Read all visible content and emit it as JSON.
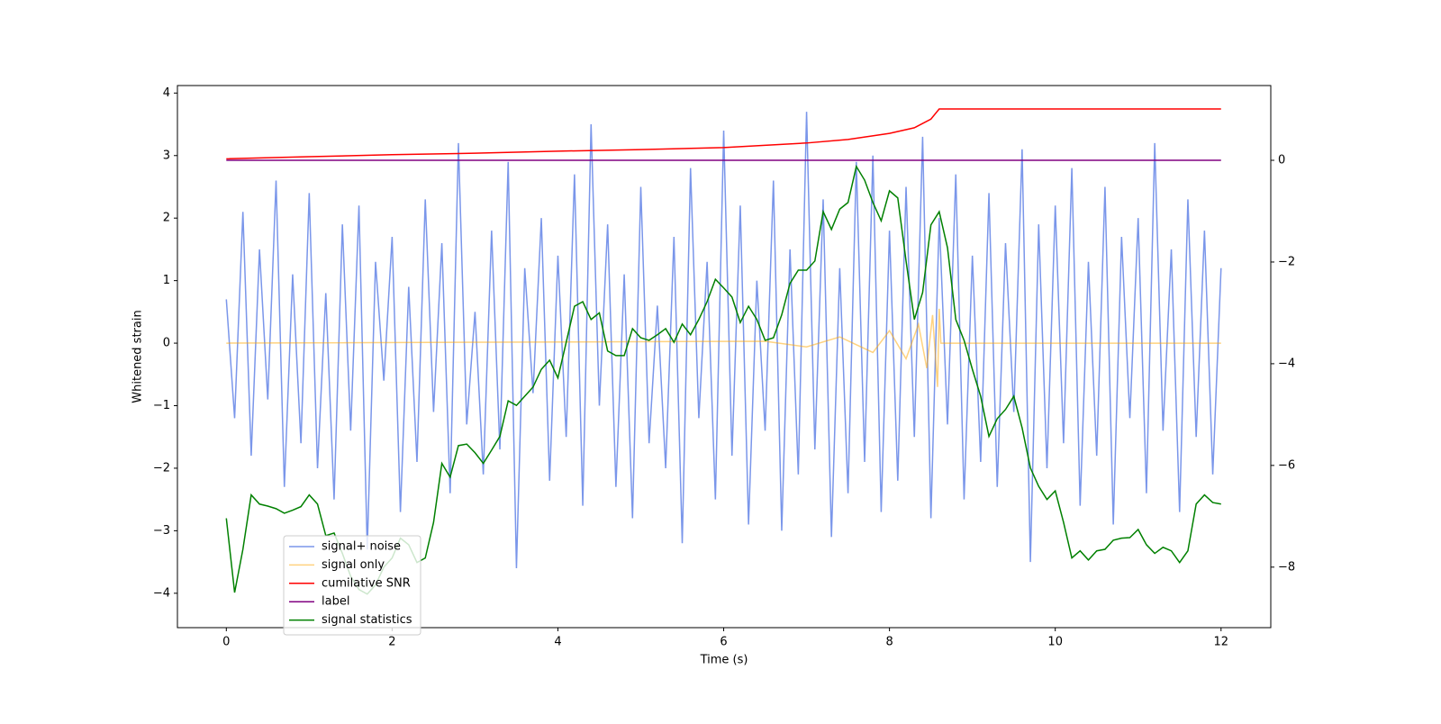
{
  "chart_data": {
    "type": "line",
    "xlabel": "Time (s)",
    "ylabel": "Whitened strain",
    "xlim": [
      -0.59,
      12.6
    ],
    "xticks": [
      0,
      2,
      4,
      6,
      8,
      10,
      12
    ],
    "ylim": [
      -4.55,
      4.12
    ],
    "yticks": [
      {
        "value": -4,
        "label": "−4"
      },
      {
        "value": -3,
        "label": "−3"
      },
      {
        "value": -2,
        "label": "−2"
      },
      {
        "value": -1,
        "label": "−1"
      },
      0,
      1,
      2,
      3,
      4
    ],
    "y2lim": [
      -9.19,
      1.47
    ],
    "y2ticks": [
      {
        "value": -8,
        "label": "−8"
      },
      {
        "value": -6,
        "label": "−6"
      },
      {
        "value": -4,
        "label": "−4"
      },
      {
        "value": -2,
        "label": "−2"
      },
      0
    ],
    "grid": false,
    "legend": "lower left",
    "x": [
      0,
      0.1,
      0.2,
      0.3,
      0.4,
      0.5,
      0.6,
      0.7,
      0.8,
      0.9,
      1,
      1.1,
      1.2,
      1.3,
      1.4,
      1.5,
      1.6,
      1.7,
      1.8,
      1.9,
      2,
      2.1,
      2.2,
      2.3,
      2.4,
      2.5,
      2.6,
      2.7,
      2.8,
      2.9,
      3,
      3.1,
      3.2,
      3.3,
      3.4,
      3.5,
      3.6,
      3.7,
      3.8,
      3.9,
      4,
      4.1,
      4.2,
      4.3,
      4.4,
      4.5,
      4.6,
      4.7,
      4.8,
      4.9,
      5,
      5.1,
      5.2,
      5.3,
      5.4,
      5.5,
      5.6,
      5.7,
      5.8,
      5.9,
      6,
      6.1,
      6.2,
      6.3,
      6.4,
      6.5,
      6.6,
      6.7,
      6.8,
      6.9,
      7,
      7.1,
      7.2,
      7.3,
      7.4,
      7.5,
      7.6,
      7.7,
      7.8,
      7.9,
      8,
      8.1,
      8.2,
      8.3,
      8.4,
      8.5,
      8.6,
      8.7,
      8.8,
      8.9,
      9,
      9.1,
      9.2,
      9.3,
      9.4,
      9.5,
      9.6,
      9.7,
      9.8,
      9.9,
      10,
      10.1,
      10.2,
      10.3,
      10.4,
      10.5,
      10.6,
      10.7,
      10.8,
      10.9,
      11,
      11.1,
      11.2,
      11.3,
      11.4,
      11.5,
      11.6,
      11.7,
      11.8,
      11.9,
      12
    ],
    "series": [
      {
        "name": "signal+ noise",
        "color": "#4169e1",
        "alpha": 0.7,
        "values": [
          0.7,
          -1.2,
          2.1,
          -1.8,
          1.5,
          -0.9,
          2.6,
          -2.3,
          1.1,
          -1.6,
          2.4,
          -2.0,
          0.8,
          -2.5,
          1.9,
          -1.4,
          2.2,
          -3.3,
          1.3,
          -0.6,
          1.7,
          -2.7,
          0.9,
          -1.9,
          2.3,
          -1.1,
          1.6,
          -2.4,
          3.2,
          -1.3,
          0.5,
          -2.1,
          1.8,
          -1.7,
          2.9,
          -3.6,
          1.2,
          -0.8,
          2.0,
          -2.2,
          1.4,
          -1.5,
          2.7,
          -2.6,
          3.5,
          -1.0,
          1.9,
          -2.3,
          1.1,
          -2.8,
          2.5,
          -1.6,
          0.6,
          -2.0,
          1.7,
          -3.2,
          2.8,
          -1.2,
          1.3,
          -2.5,
          3.4,
          -1.8,
          2.2,
          -2.9,
          1.0,
          -1.4,
          2.6,
          -3.0,
          1.5,
          -2.1,
          3.7,
          -1.7,
          2.3,
          -3.1,
          1.2,
          -2.4,
          2.9,
          -1.9,
          3.0,
          -2.7,
          1.8,
          -2.2,
          2.5,
          -1.5,
          3.3,
          -2.8,
          2.0,
          -1.3,
          2.7,
          -2.5,
          1.4,
          -1.9,
          2.4,
          -2.3,
          1.6,
          -1.1,
          3.1,
          -3.5,
          1.9,
          -2.0,
          2.2,
          -1.6,
          2.8,
          -2.6,
          1.3,
          -1.8,
          2.5,
          -2.9,
          1.7,
          -1.2,
          2.0,
          -2.4,
          3.2,
          -1.4,
          1.5,
          -2.7,
          2.3,
          -1.5,
          1.8,
          -2.1,
          1.2
        ]
      },
      {
        "name": "signal only",
        "color": "#ffa500",
        "alpha": 0.5,
        "x": [
          0,
          6.5,
          7,
          7.4,
          7.8,
          8.0,
          8.2,
          8.35,
          8.45,
          8.52,
          8.58,
          8.6,
          8.62,
          12
        ],
        "values": [
          0,
          0.03,
          -0.06,
          0.1,
          -0.15,
          0.2,
          -0.25,
          0.3,
          -0.4,
          0.45,
          -0.7,
          0.55,
          0,
          0
        ]
      },
      {
        "name": "cumilative SNR",
        "color": "red",
        "axis": "y2",
        "x": [
          0,
          1,
          2,
          3,
          4,
          5,
          6,
          7,
          7.5,
          8,
          8.3,
          8.5,
          8.6,
          12
        ],
        "values": [
          0.03,
          0.07,
          0.11,
          0.14,
          0.18,
          0.21,
          0.25,
          0.34,
          0.41,
          0.53,
          0.64,
          0.81,
          1.01,
          1.01
        ]
      },
      {
        "name": "label",
        "color": "purple",
        "axis": "y2",
        "x": [
          0,
          12
        ],
        "values": [
          0,
          0
        ]
      },
      {
        "name": "signal statistics",
        "color": "green",
        "axis": "y2",
        "values": [
          -7.04,
          -8.5,
          -7.65,
          -6.58,
          -6.76,
          -6.8,
          -6.85,
          -6.94,
          -6.88,
          -6.81,
          -6.58,
          -6.76,
          -7.38,
          -7.33,
          -7.73,
          -8.18,
          -8.44,
          -8.53,
          -8.35,
          -8.0,
          -7.82,
          -7.43,
          -7.56,
          -7.91,
          -7.82,
          -7.12,
          -5.96,
          -6.23,
          -5.61,
          -5.58,
          -5.75,
          -5.96,
          -5.7,
          -5.43,
          -4.73,
          -4.82,
          -4.64,
          -4.46,
          -4.11,
          -3.93,
          -4.28,
          -3.58,
          -2.87,
          -2.78,
          -3.13,
          -3.0,
          -3.75,
          -3.84,
          -3.84,
          -3.31,
          -3.49,
          -3.54,
          -3.43,
          -3.31,
          -3.58,
          -3.22,
          -3.43,
          -3.13,
          -2.78,
          -2.34,
          -2.51,
          -2.69,
          -3.19,
          -2.87,
          -3.13,
          -3.54,
          -3.49,
          -3.04,
          -2.42,
          -2.16,
          -2.16,
          -1.98,
          -1.01,
          -1.36,
          -0.96,
          -0.83,
          -0.12,
          -0.39,
          -0.83,
          -1.19,
          -0.6,
          -0.74,
          -1.98,
          -3.13,
          -2.6,
          -1.27,
          -1.01,
          -1.72,
          -3.13,
          -3.54,
          -4.11,
          -4.64,
          -5.43,
          -5.08,
          -4.9,
          -4.64,
          -5.26,
          -6.05,
          -6.41,
          -6.67,
          -6.5,
          -7.12,
          -7.82,
          -7.68,
          -7.86,
          -7.68,
          -7.65,
          -7.47,
          -7.43,
          -7.42,
          -7.26,
          -7.56,
          -7.73,
          -7.61,
          -7.68,
          -7.91,
          -7.68,
          -6.76,
          -6.58,
          -6.73,
          -6.76
        ]
      }
    ]
  }
}
